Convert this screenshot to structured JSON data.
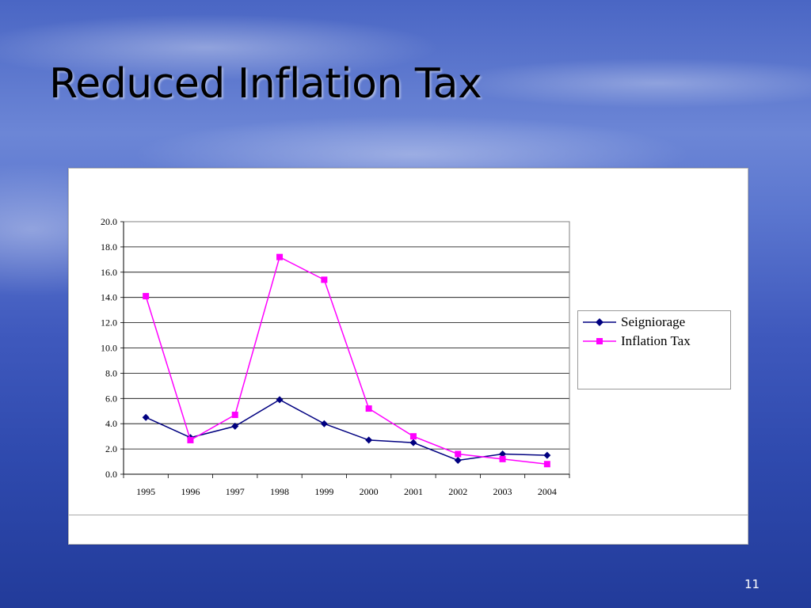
{
  "slide": {
    "title": "Reduced Inflation Tax",
    "page_number": "11"
  },
  "chart_data": {
    "type": "line",
    "categories": [
      "1995",
      "1996",
      "1997",
      "1998",
      "1999",
      "2000",
      "2001",
      "2002",
      "2003",
      "2004"
    ],
    "y_tick_labels": [
      "0.0",
      "2.0",
      "4.0",
      "6.0",
      "8.0",
      "10.0",
      "12.0",
      "14.0",
      "16.0",
      "18.0",
      "20.0"
    ],
    "ylim": [
      0,
      20
    ],
    "grid": true,
    "legend_position": "right",
    "series": [
      {
        "name": "Seigniorage",
        "color": "#000080",
        "marker": "diamond",
        "values": [
          4.5,
          2.9,
          3.8,
          5.9,
          4.0,
          2.7,
          2.5,
          1.1,
          1.6,
          1.5
        ]
      },
      {
        "name": "Inflation Tax",
        "color": "#ff00ff",
        "marker": "square",
        "values": [
          14.1,
          2.7,
          4.7,
          17.2,
          15.4,
          5.2,
          3.0,
          1.6,
          1.2,
          0.8
        ]
      }
    ]
  }
}
